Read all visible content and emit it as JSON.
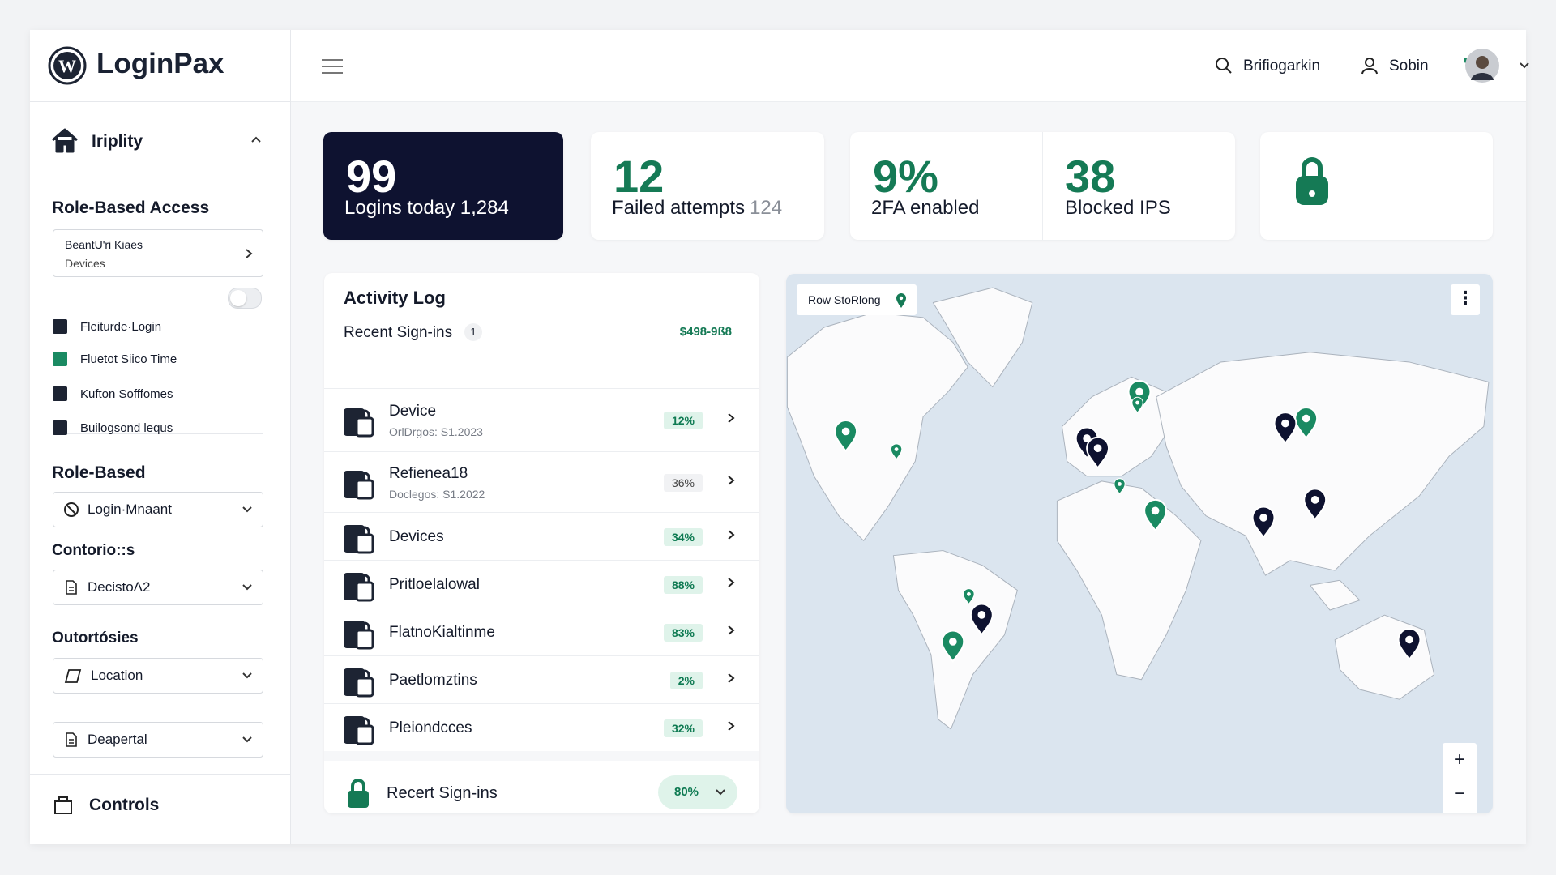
{
  "brand": "LoginPax",
  "header": {
    "search": "Brifiogarkin",
    "user": "Sobin"
  },
  "sidebar": {
    "top_item": "Iriplity",
    "section1": {
      "title": "Role-Based Access",
      "box": [
        "BeantU'ri Kiaes",
        "Devices"
      ],
      "items": [
        "Fleiturde·Login",
        "Fluetot Siico Time",
        "Kufton Sofffomes",
        "Builogsond lequs"
      ]
    },
    "section2_title": "Role-Based",
    "select1": "Login·Mnaant",
    "label2": "Contorio::s",
    "select2": "DecistoΛ2",
    "label3": "Outortósies",
    "select3": "Location",
    "select4": "Deapertal",
    "footer": "Controls"
  },
  "stats": [
    {
      "value": "99",
      "label": "Logins today",
      "extra": "1,284"
    },
    {
      "value": "12",
      "label": "Failed attempts",
      "extra": "124"
    },
    {
      "value": "9%",
      "label": "2FA enabled"
    },
    {
      "value": "38",
      "label": "Blocked IPS"
    }
  ],
  "activity": {
    "title": "Activity Log",
    "subtitle": "Recent Sign-ins",
    "badge": "1",
    "amount": "$498-9ß8",
    "rows": [
      {
        "name": "Device",
        "sub": "OrlDrgos: S1.2023",
        "pct": "12%"
      },
      {
        "name": "Refienea18",
        "sub": "Doclegos: S1.2022",
        "pct": "36%"
      },
      {
        "name": "Devices",
        "pct": "34%"
      },
      {
        "name": "Pritloelalowal",
        "pct": "88%"
      },
      {
        "name": "FlatnoKialtinme",
        "pct": "83%"
      },
      {
        "name": "Paetlomztins",
        "pct": "2%"
      },
      {
        "name": "Pleiondcces",
        "pct": "32%"
      }
    ],
    "footer": {
      "label": "Recert Sign-ins",
      "pct": "80%"
    }
  },
  "map": {
    "label": "Row StoRlong",
    "zoom_in": "+",
    "zoom_out": "−"
  }
}
